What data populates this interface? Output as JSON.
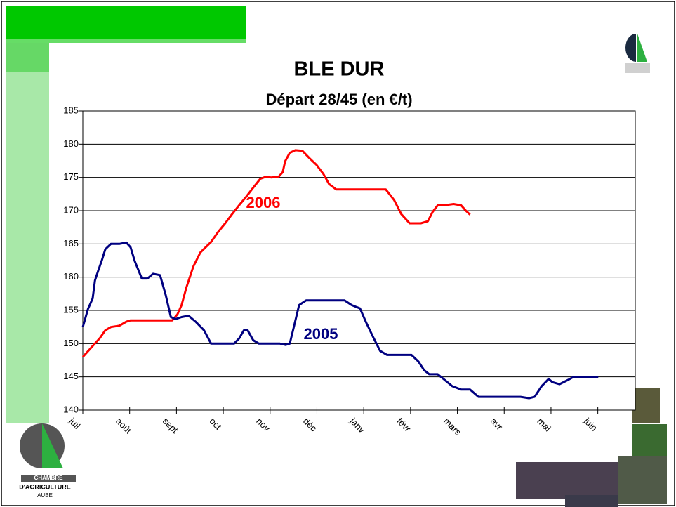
{
  "chart_data": {
    "type": "line",
    "title": "BLE DUR",
    "subtitle": "Départ 28/45 (en €/t)",
    "categories": [
      "juil",
      "août",
      "sept",
      "oct",
      "nov",
      "déc",
      "janv",
      "févr",
      "mars",
      "avr",
      "mai",
      "juin"
    ],
    "xlim": [
      0,
      11.8
    ],
    "ylim": [
      140,
      185
    ],
    "yticks": [
      140,
      145,
      150,
      155,
      160,
      165,
      170,
      175,
      180,
      185
    ],
    "grid": true,
    "series": [
      {
        "name": "2006",
        "color": "#ff0000",
        "x": [
          0,
          0.18,
          0.36,
          0.48,
          0.6,
          0.78,
          0.93,
          1.02,
          1.91,
          2.02,
          2.11,
          2.21,
          2.36,
          2.51,
          2.74,
          2.89,
          3.04,
          3.19,
          3.37,
          3.49,
          3.61,
          3.79,
          3.91,
          4.02,
          4.18,
          4.27,
          4.32,
          4.42,
          4.54,
          4.69,
          4.84,
          4.99,
          5.14,
          5.26,
          5.41,
          5.97,
          6.47,
          6.65,
          6.8,
          6.98,
          7.22,
          7.37,
          7.47,
          7.58,
          7.7,
          7.92,
          8.08,
          8.18,
          8.27
        ],
        "values": [
          148,
          149.4,
          150.8,
          152,
          152.5,
          152.7,
          153.3,
          153.5,
          153.5,
          154.4,
          155.8,
          158.4,
          161.6,
          163.7,
          165.3,
          166.8,
          168.1,
          169.5,
          171.1,
          172.1,
          173.2,
          174.8,
          175.1,
          175,
          175.1,
          175.8,
          177.4,
          178.7,
          179.1,
          179,
          177.9,
          176.9,
          175.5,
          174,
          173.2,
          173.2,
          173.2,
          171.6,
          169.5,
          168.1,
          168.1,
          168.4,
          169.8,
          170.8,
          170.8,
          171,
          170.8,
          170,
          169.4
        ]
      },
      {
        "name": "2005",
        "color": "#000080",
        "x": [
          0,
          0.11,
          0.21,
          0.26,
          0.33,
          0.41,
          0.48,
          0.6,
          0.78,
          0.93,
          1.02,
          1.11,
          1.19,
          1.26,
          1.38,
          1.5,
          1.65,
          1.77,
          1.88,
          1.98,
          2.11,
          2.26,
          2.41,
          2.59,
          2.74,
          2.92,
          3.23,
          3.34,
          3.44,
          3.52,
          3.64,
          3.76,
          4.21,
          4.33,
          4.42,
          4.51,
          4.62,
          4.77,
          5.59,
          5.74,
          5.92,
          6.05,
          6.2,
          6.35,
          6.5,
          7.02,
          7.17,
          7.29,
          7.4,
          7.58,
          7.7,
          7.89,
          8.08,
          8.27,
          8.45,
          9.35,
          9.53,
          9.65,
          9.8,
          9.95,
          10.03,
          10.18,
          10.38,
          10.48,
          11.01
        ],
        "values": [
          152.5,
          155.2,
          156.8,
          159.5,
          161,
          162.6,
          164.2,
          165,
          165,
          165.2,
          164.5,
          162.4,
          161,
          159.8,
          159.8,
          160.5,
          160.3,
          157.3,
          154,
          153.7,
          154,
          154.2,
          153.3,
          152,
          150,
          150,
          150,
          150.8,
          152,
          152,
          150.5,
          150,
          150,
          149.8,
          150,
          152.6,
          155.8,
          156.5,
          156.5,
          155.8,
          155.3,
          153.2,
          151,
          148.9,
          148.3,
          148.3,
          147.3,
          146,
          145.4,
          145.4,
          144.7,
          143.6,
          143.1,
          143.1,
          142,
          142,
          141.8,
          142,
          143.6,
          144.7,
          144.2,
          143.9,
          144.6,
          145,
          145
        ]
      }
    ]
  },
  "footer": {
    "org_line1": "CHAMBRE",
    "org_line2": "D'AGRICULTURE",
    "org_line3": "AUBE"
  }
}
